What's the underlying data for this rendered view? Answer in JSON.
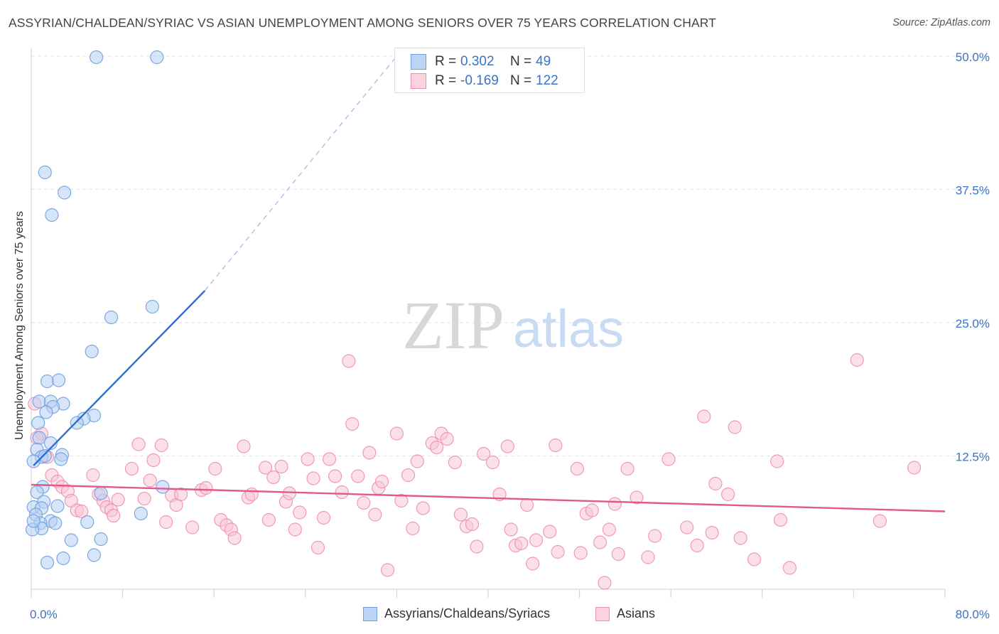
{
  "header": {
    "title": "ASSYRIAN/CHALDEAN/SYRIAC VS ASIAN UNEMPLOYMENT AMONG SENIORS OVER 75 YEARS CORRELATION CHART",
    "source": "Source: ZipAtlas.com"
  },
  "watermark": {
    "zip": "ZIP",
    "atlas": "atlas"
  },
  "legend": {
    "rows": [
      {
        "r_label": "R =",
        "r_value": "0.302",
        "n_label": "N =",
        "n_value": "49",
        "color": "#a9c8f0"
      },
      {
        "r_label": "R =",
        "r_value": "-0.169",
        "n_label": "N =",
        "n_value": "122",
        "color": "#f6b8cb"
      }
    ]
  },
  "bottom_legend": {
    "series1": "Assyrians/Chaldeans/Syriacs",
    "series2": "Asians"
  },
  "chart_data": {
    "type": "scatter",
    "title": "ASSYRIAN/CHALDEAN/SYRIAC VS ASIAN UNEMPLOYMENT AMONG SENIORS OVER 75 YEARS CORRELATION CHART",
    "xlabel": "",
    "ylabel": "Unemployment Among Seniors over 75 years",
    "xlim": [
      0,
      80
    ],
    "ylim": [
      0,
      50
    ],
    "x_tick_labels": [
      "0.0%",
      "80.0%"
    ],
    "y_tick_labels": [
      "12.5%",
      "25.0%",
      "37.5%",
      "50.0%"
    ],
    "y_ticks": [
      12.5,
      25,
      37.5,
      50
    ],
    "grid": true,
    "series": [
      {
        "name": "Assyrians/Chaldeans/Syriacs",
        "color": "#6f9fe0",
        "fill": "#b4d0f2",
        "line_color": "#2f6fd0",
        "trend": {
          "x": [
            0.2,
            15.2
          ],
          "y": [
            11.6,
            28.0
          ],
          "dashed_to": [
            32.0,
            50.0
          ]
        },
        "points": [
          [
            5.7,
            49.9
          ],
          [
            11.0,
            49.9
          ],
          [
            1.2,
            39.1
          ],
          [
            2.9,
            37.2
          ],
          [
            1.8,
            35.1
          ],
          [
            10.6,
            26.5
          ],
          [
            7.0,
            25.5
          ],
          [
            5.3,
            22.3
          ],
          [
            1.4,
            19.5
          ],
          [
            2.4,
            19.6
          ],
          [
            0.7,
            17.6
          ],
          [
            1.7,
            17.6
          ],
          [
            2.8,
            17.4
          ],
          [
            1.9,
            17.1
          ],
          [
            1.3,
            16.6
          ],
          [
            5.5,
            16.3
          ],
          [
            4.6,
            16.0
          ],
          [
            4.0,
            15.6
          ],
          [
            0.6,
            15.6
          ],
          [
            0.7,
            14.2
          ],
          [
            1.7,
            13.7
          ],
          [
            0.5,
            13.1
          ],
          [
            2.7,
            12.6
          ],
          [
            0.9,
            12.4
          ],
          [
            1.2,
            12.5
          ],
          [
            2.6,
            12.2
          ],
          [
            0.2,
            12.0
          ],
          [
            11.5,
            9.6
          ],
          [
            1.0,
            9.6
          ],
          [
            0.5,
            9.1
          ],
          [
            6.1,
            9.0
          ],
          [
            1.1,
            8.2
          ],
          [
            0.2,
            7.7
          ],
          [
            2.3,
            7.8
          ],
          [
            0.9,
            7.6
          ],
          [
            0.4,
            7.0
          ],
          [
            9.6,
            7.1
          ],
          [
            1.7,
            6.4
          ],
          [
            0.8,
            6.2
          ],
          [
            2.1,
            6.2
          ],
          [
            4.9,
            6.3
          ],
          [
            0.9,
            5.7
          ],
          [
            0.1,
            5.6
          ],
          [
            3.5,
            4.6
          ],
          [
            6.1,
            4.7
          ],
          [
            5.5,
            3.2
          ],
          [
            2.8,
            2.9
          ],
          [
            1.4,
            2.5
          ],
          [
            0.2,
            6.4
          ]
        ]
      },
      {
        "name": "Asians",
        "color": "#ee8fae",
        "fill": "#f8c6d6",
        "line_color": "#e0588c",
        "trend": {
          "x": [
            0,
            80
          ],
          "y": [
            9.8,
            7.3
          ]
        },
        "points": [
          [
            0.3,
            17.4
          ],
          [
            0.9,
            14.6
          ],
          [
            1.4,
            12.4
          ],
          [
            1.8,
            10.7
          ],
          [
            2.3,
            10.1
          ],
          [
            2.7,
            9.6
          ],
          [
            3.2,
            9.2
          ],
          [
            3.5,
            8.3
          ],
          [
            4.0,
            7.4
          ],
          [
            4.4,
            7.3
          ],
          [
            5.4,
            10.7
          ],
          [
            5.9,
            8.9
          ],
          [
            6.3,
            8.3
          ],
          [
            6.6,
            7.7
          ],
          [
            7.0,
            7.4
          ],
          [
            7.2,
            6.9
          ],
          [
            7.6,
            8.4
          ],
          [
            8.8,
            11.3
          ],
          [
            9.4,
            13.6
          ],
          [
            9.9,
            8.5
          ],
          [
            10.4,
            10.2
          ],
          [
            10.7,
            12.1
          ],
          [
            11.4,
            13.5
          ],
          [
            11.8,
            6.3
          ],
          [
            12.3,
            8.8
          ],
          [
            12.7,
            7.9
          ],
          [
            13.1,
            8.9
          ],
          [
            14.1,
            5.8
          ],
          [
            14.9,
            9.3
          ],
          [
            15.3,
            9.5
          ],
          [
            16.1,
            11.3
          ],
          [
            16.6,
            6.5
          ],
          [
            17.1,
            6.0
          ],
          [
            17.5,
            5.6
          ],
          [
            17.8,
            4.8
          ],
          [
            18.6,
            13.4
          ],
          [
            19.0,
            8.6
          ],
          [
            19.3,
            8.9
          ],
          [
            20.5,
            11.4
          ],
          [
            20.8,
            6.5
          ],
          [
            21.2,
            10.5
          ],
          [
            21.9,
            11.5
          ],
          [
            22.3,
            8.2
          ],
          [
            22.6,
            9.0
          ],
          [
            23.1,
            5.6
          ],
          [
            23.5,
            7.2
          ],
          [
            24.2,
            12.2
          ],
          [
            24.7,
            10.4
          ],
          [
            25.1,
            3.9
          ],
          [
            25.6,
            6.7
          ],
          [
            26.1,
            12.2
          ],
          [
            26.6,
            10.6
          ],
          [
            27.2,
            9.1
          ],
          [
            27.8,
            21.4
          ],
          [
            28.1,
            15.5
          ],
          [
            28.6,
            10.6
          ],
          [
            29.1,
            8.1
          ],
          [
            29.6,
            12.8
          ],
          [
            30.1,
            7.0
          ],
          [
            30.4,
            9.5
          ],
          [
            30.7,
            10.1
          ],
          [
            31.2,
            1.8
          ],
          [
            32.0,
            14.6
          ],
          [
            32.4,
            8.3
          ],
          [
            33.0,
            10.7
          ],
          [
            33.4,
            5.7
          ],
          [
            33.8,
            12.0
          ],
          [
            34.3,
            7.6
          ],
          [
            35.1,
            13.7
          ],
          [
            35.5,
            13.3
          ],
          [
            35.9,
            14.6
          ],
          [
            36.4,
            14.1
          ],
          [
            37.1,
            11.9
          ],
          [
            37.6,
            7.0
          ],
          [
            38.1,
            5.9
          ],
          [
            38.6,
            6.1
          ],
          [
            39.0,
            4.0
          ],
          [
            39.6,
            12.7
          ],
          [
            40.4,
            11.9
          ],
          [
            41.0,
            8.9
          ],
          [
            41.7,
            13.4
          ],
          [
            42.0,
            5.6
          ],
          [
            42.4,
            4.1
          ],
          [
            42.9,
            4.3
          ],
          [
            43.4,
            7.9
          ],
          [
            43.9,
            2.4
          ],
          [
            44.2,
            4.6
          ],
          [
            45.4,
            5.4
          ],
          [
            45.9,
            13.5
          ],
          [
            46.1,
            3.5
          ],
          [
            47.8,
            11.3
          ],
          [
            48.1,
            3.4
          ],
          [
            48.6,
            7.1
          ],
          [
            49.1,
            7.4
          ],
          [
            49.8,
            4.4
          ],
          [
            50.2,
            0.6
          ],
          [
            50.6,
            5.6
          ],
          [
            51.1,
            8.0
          ],
          [
            51.4,
            3.3
          ],
          [
            52.2,
            11.3
          ],
          [
            53.0,
            8.6
          ],
          [
            54.0,
            3.0
          ],
          [
            54.6,
            5.0
          ],
          [
            55.8,
            12.2
          ],
          [
            57.4,
            5.8
          ],
          [
            58.3,
            4.1
          ],
          [
            58.9,
            16.2
          ],
          [
            59.6,
            5.3
          ],
          [
            59.9,
            9.9
          ],
          [
            61.0,
            8.9
          ],
          [
            61.6,
            15.2
          ],
          [
            62.1,
            4.8
          ],
          [
            63.3,
            2.8
          ],
          [
            65.3,
            12.0
          ],
          [
            65.6,
            6.5
          ],
          [
            66.4,
            2.0
          ],
          [
            72.3,
            21.5
          ],
          [
            74.3,
            6.4
          ],
          [
            77.3,
            11.4
          ],
          [
            0.5,
            14.2
          ]
        ]
      }
    ]
  }
}
